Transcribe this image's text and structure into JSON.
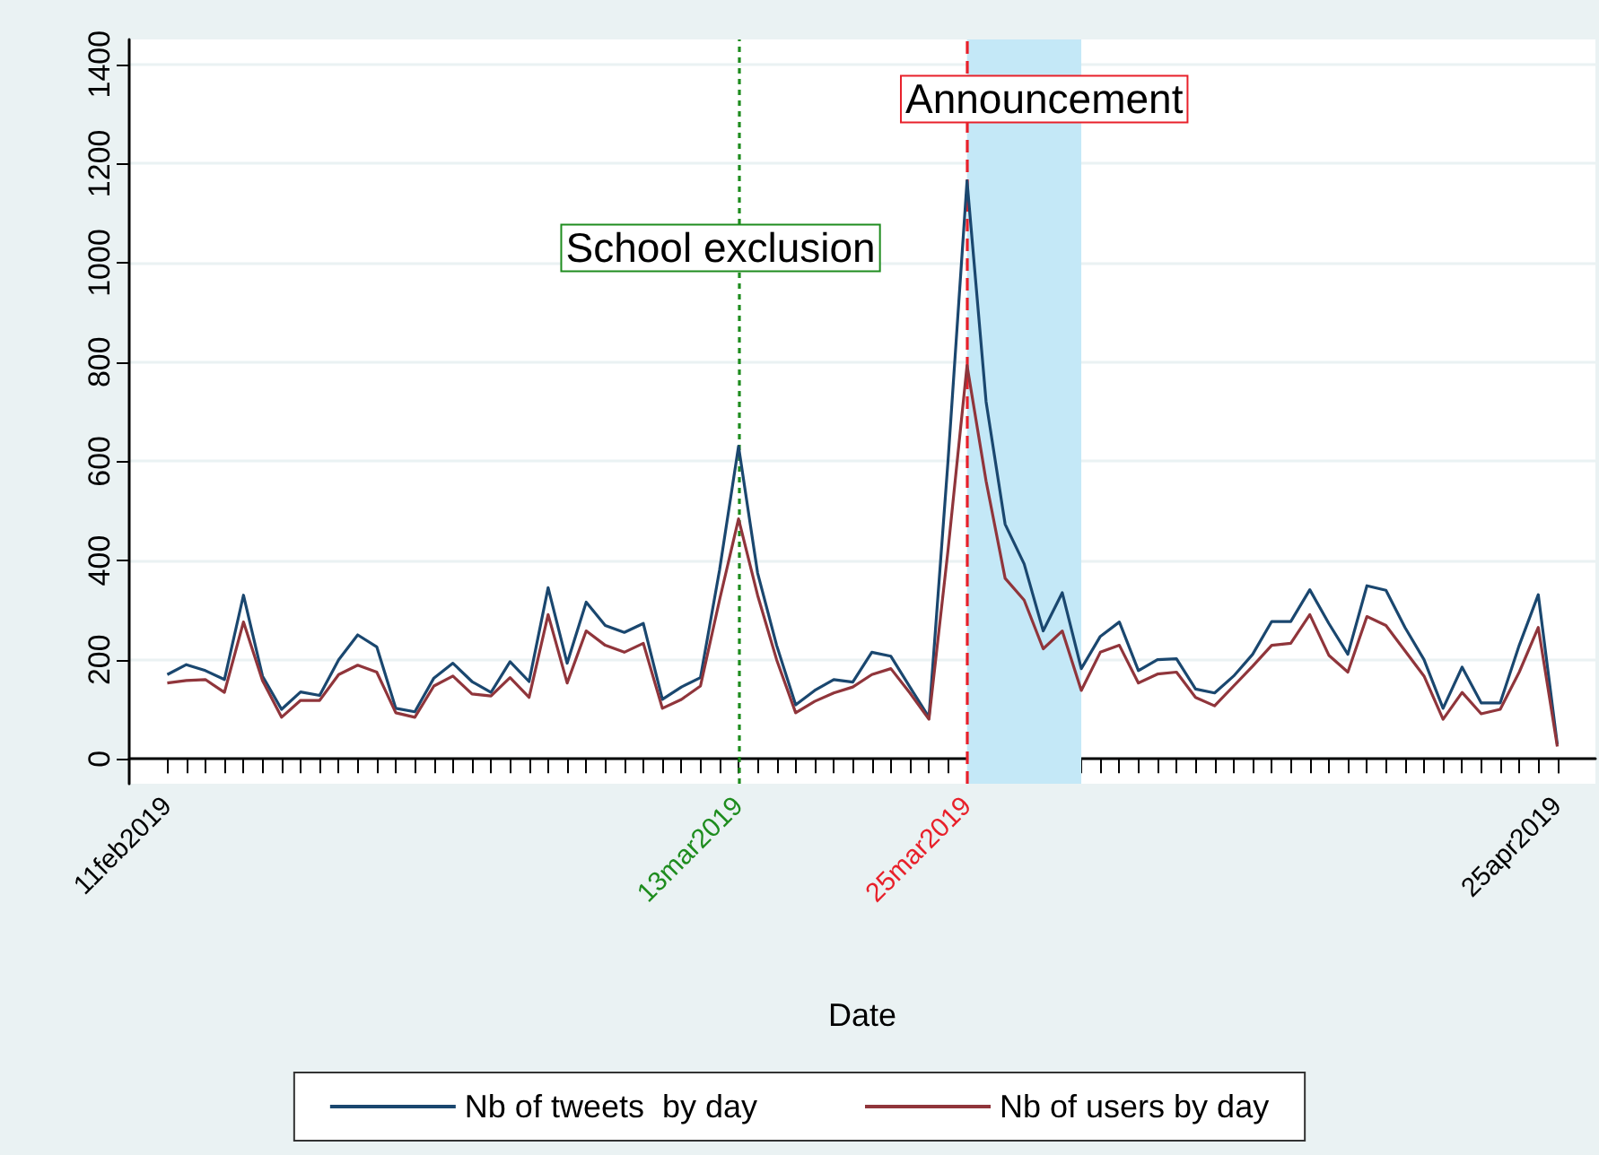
{
  "chart_data": {
    "type": "line",
    "xlabel": "Date",
    "x": [
      "2019-02-11",
      "2019-02-12",
      "2019-02-13",
      "2019-02-14",
      "2019-02-15",
      "2019-02-16",
      "2019-02-17",
      "2019-02-18",
      "2019-02-19",
      "2019-02-20",
      "2019-02-21",
      "2019-02-22",
      "2019-02-23",
      "2019-02-24",
      "2019-02-25",
      "2019-02-26",
      "2019-02-27",
      "2019-02-28",
      "2019-03-01",
      "2019-03-02",
      "2019-03-03",
      "2019-03-04",
      "2019-03-05",
      "2019-03-06",
      "2019-03-07",
      "2019-03-08",
      "2019-03-09",
      "2019-03-10",
      "2019-03-11",
      "2019-03-12",
      "2019-03-13",
      "2019-03-14",
      "2019-03-15",
      "2019-03-16",
      "2019-03-17",
      "2019-03-18",
      "2019-03-19",
      "2019-03-20",
      "2019-03-21",
      "2019-03-22",
      "2019-03-23",
      "2019-03-24",
      "2019-03-25",
      "2019-03-26",
      "2019-03-27",
      "2019-03-28",
      "2019-03-29",
      "2019-03-30",
      "2019-03-31",
      "2019-04-01",
      "2019-04-02",
      "2019-04-03",
      "2019-04-04",
      "2019-04-05",
      "2019-04-06",
      "2019-04-07",
      "2019-04-08",
      "2019-04-09",
      "2019-04-10",
      "2019-04-11",
      "2019-04-12",
      "2019-04-13",
      "2019-04-14",
      "2019-04-15",
      "2019-04-16",
      "2019-04-17",
      "2019-04-18",
      "2019-04-19",
      "2019-04-20",
      "2019-04-21",
      "2019-04-22",
      "2019-04-23",
      "2019-04-24",
      "2019-04-25"
    ],
    "series": [
      {
        "name": "Nb of tweets  by day",
        "color": "#1a476f",
        "values": [
          170,
          190,
          178,
          160,
          330,
          167,
          100,
          135,
          128,
          200,
          250,
          226,
          102,
          95,
          163,
          193,
          156,
          134,
          196,
          156,
          345,
          193,
          316,
          269,
          255,
          273,
          120,
          145,
          164,
          380,
          630,
          375,
          229,
          109,
          138,
          160,
          155,
          215,
          207,
          145,
          84,
          600,
          1165,
          720,
          473,
          393,
          258,
          335,
          182,
          247,
          276,
          178,
          200,
          202,
          141,
          133,
          167,
          211,
          277,
          277,
          341,
          273,
          211,
          349,
          340,
          265,
          200,
          102,
          185,
          113,
          113,
          229,
          331,
          29
        ]
      },
      {
        "name": "Nb of users by day",
        "color": "#90353b",
        "values": [
          153,
          158,
          160,
          134,
          276,
          158,
          84,
          118,
          118,
          170,
          189,
          175,
          93,
          84,
          147,
          167,
          131,
          127,
          164,
          124,
          291,
          153,
          258,
          229,
          215,
          233,
          102,
          120,
          147,
          320,
          484,
          330,
          200,
          93,
          116,
          133,
          145,
          170,
          182,
          133,
          80,
          420,
          793,
          560,
          364,
          320,
          222,
          258,
          138,
          215,
          229,
          153,
          171,
          175,
          124,
          107,
          147,
          187,
          229,
          233,
          291,
          209,
          175,
          287,
          269,
          218,
          167,
          80,
          134,
          91,
          100,
          175,
          265,
          25
        ]
      }
    ],
    "xlim": [
      "2019-02-09",
      "2019-04-27"
    ],
    "xticks": [
      {
        "value": "2019-02-11",
        "label": "11feb2019"
      },
      {
        "value": "2019-03-13",
        "label": "13mar2019"
      },
      {
        "value": "2019-03-25",
        "label": "25mar2019"
      },
      {
        "value": "2019-04-25",
        "label": "25apr2019"
      }
    ],
    "ylim": [
      -50,
      1450
    ],
    "yticks": [
      0,
      200,
      400,
      600,
      800,
      1000,
      1200,
      1400
    ],
    "ref_lines": [
      {
        "axis": "x",
        "value": "2019-03-13",
        "label": "School exclusion",
        "color": "#1e8c1e",
        "line_style": "dotted"
      },
      {
        "axis": "x",
        "value": "2019-03-25",
        "label": "Announcement",
        "color": "#e8202a",
        "line_style": "dashed"
      }
    ],
    "bands": [
      {
        "axis": "x",
        "from": "2019-03-25",
        "to": "2019-03-31",
        "color": "#c4e8f7"
      }
    ],
    "grid": "y",
    "legend": "bottom",
    "marker": "none",
    "line_style": "solid"
  }
}
